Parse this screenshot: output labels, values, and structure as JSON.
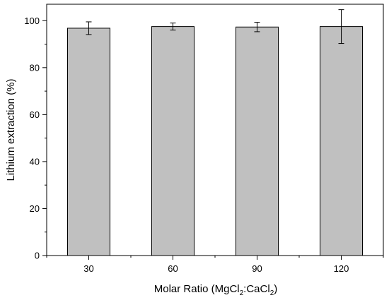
{
  "chart_data": {
    "type": "bar",
    "xlabel": "Molar Ratio (MgCl",
    "xlabel_parts": [
      {
        "text": "Molar Ratio (MgCl",
        "sub": false
      },
      {
        "text": "2",
        "sub": true
      },
      {
        "text": ":CaCl",
        "sub": false
      },
      {
        "text": "2",
        "sub": true
      },
      {
        "text": ")",
        "sub": false
      }
    ],
    "ylabel": "Lithium extraction (%)",
    "categories": [
      "30",
      "60",
      "90",
      "120"
    ],
    "values": [
      96.8,
      97.5,
      97.3,
      97.5
    ],
    "errors": [
      2.7,
      1.5,
      2.0,
      7.2
    ],
    "ylim": [
      0,
      107
    ],
    "yticks": [
      0,
      20,
      40,
      60,
      80,
      100
    ],
    "bar_color": "#c0c0c0",
    "edge_color": "#000000",
    "grid": false,
    "legend": "none"
  }
}
